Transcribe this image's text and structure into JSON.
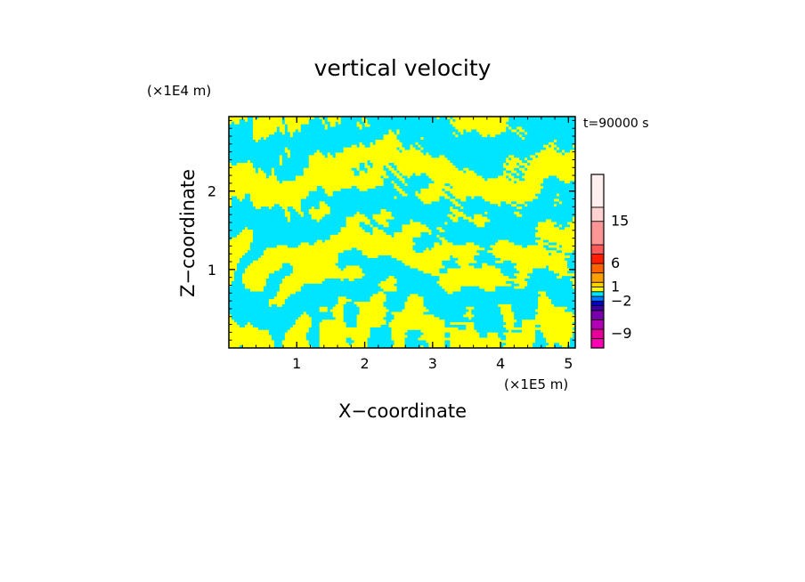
{
  "chart_data": {
    "type": "heatmap",
    "title": "vertical velocity",
    "xlabel": "X−coordinate",
    "ylabel": "Z−coordinate",
    "x_unit": "(×1E5 m)",
    "y_unit": "(×1E4 m)",
    "time_label": "t=90000 s",
    "xlim": [
      0,
      5.1
    ],
    "ylim": [
      0,
      2.95
    ],
    "x_ticks": [
      "1",
      "2",
      "3",
      "4",
      "5"
    ],
    "x_tick_values": [
      1,
      2,
      3,
      4,
      5
    ],
    "y_ticks": [
      "1",
      "2"
    ],
    "y_tick_values": [
      1,
      2
    ],
    "field_colors": {
      "negative": "#00e5ff",
      "positive": "#ffff00"
    },
    "colorbar": {
      "colors": [
        "#ff00b4",
        "#e6009a",
        "#b400b4",
        "#7800aa",
        "#3c00a0",
        "#0000c8",
        "#0078ff",
        "#00e5ff",
        "#ffff00",
        "#ffd200",
        "#ffa000",
        "#ff6400",
        "#ff1e00",
        "#ff5a5a",
        "#ff9696",
        "#ffd2d2",
        "#ffeeee"
      ],
      "tick_labels": [
        "−9",
        "−2",
        "1",
        "6",
        "15"
      ],
      "tick_levels": [
        -9,
        -2,
        1,
        6,
        15
      ]
    }
  }
}
